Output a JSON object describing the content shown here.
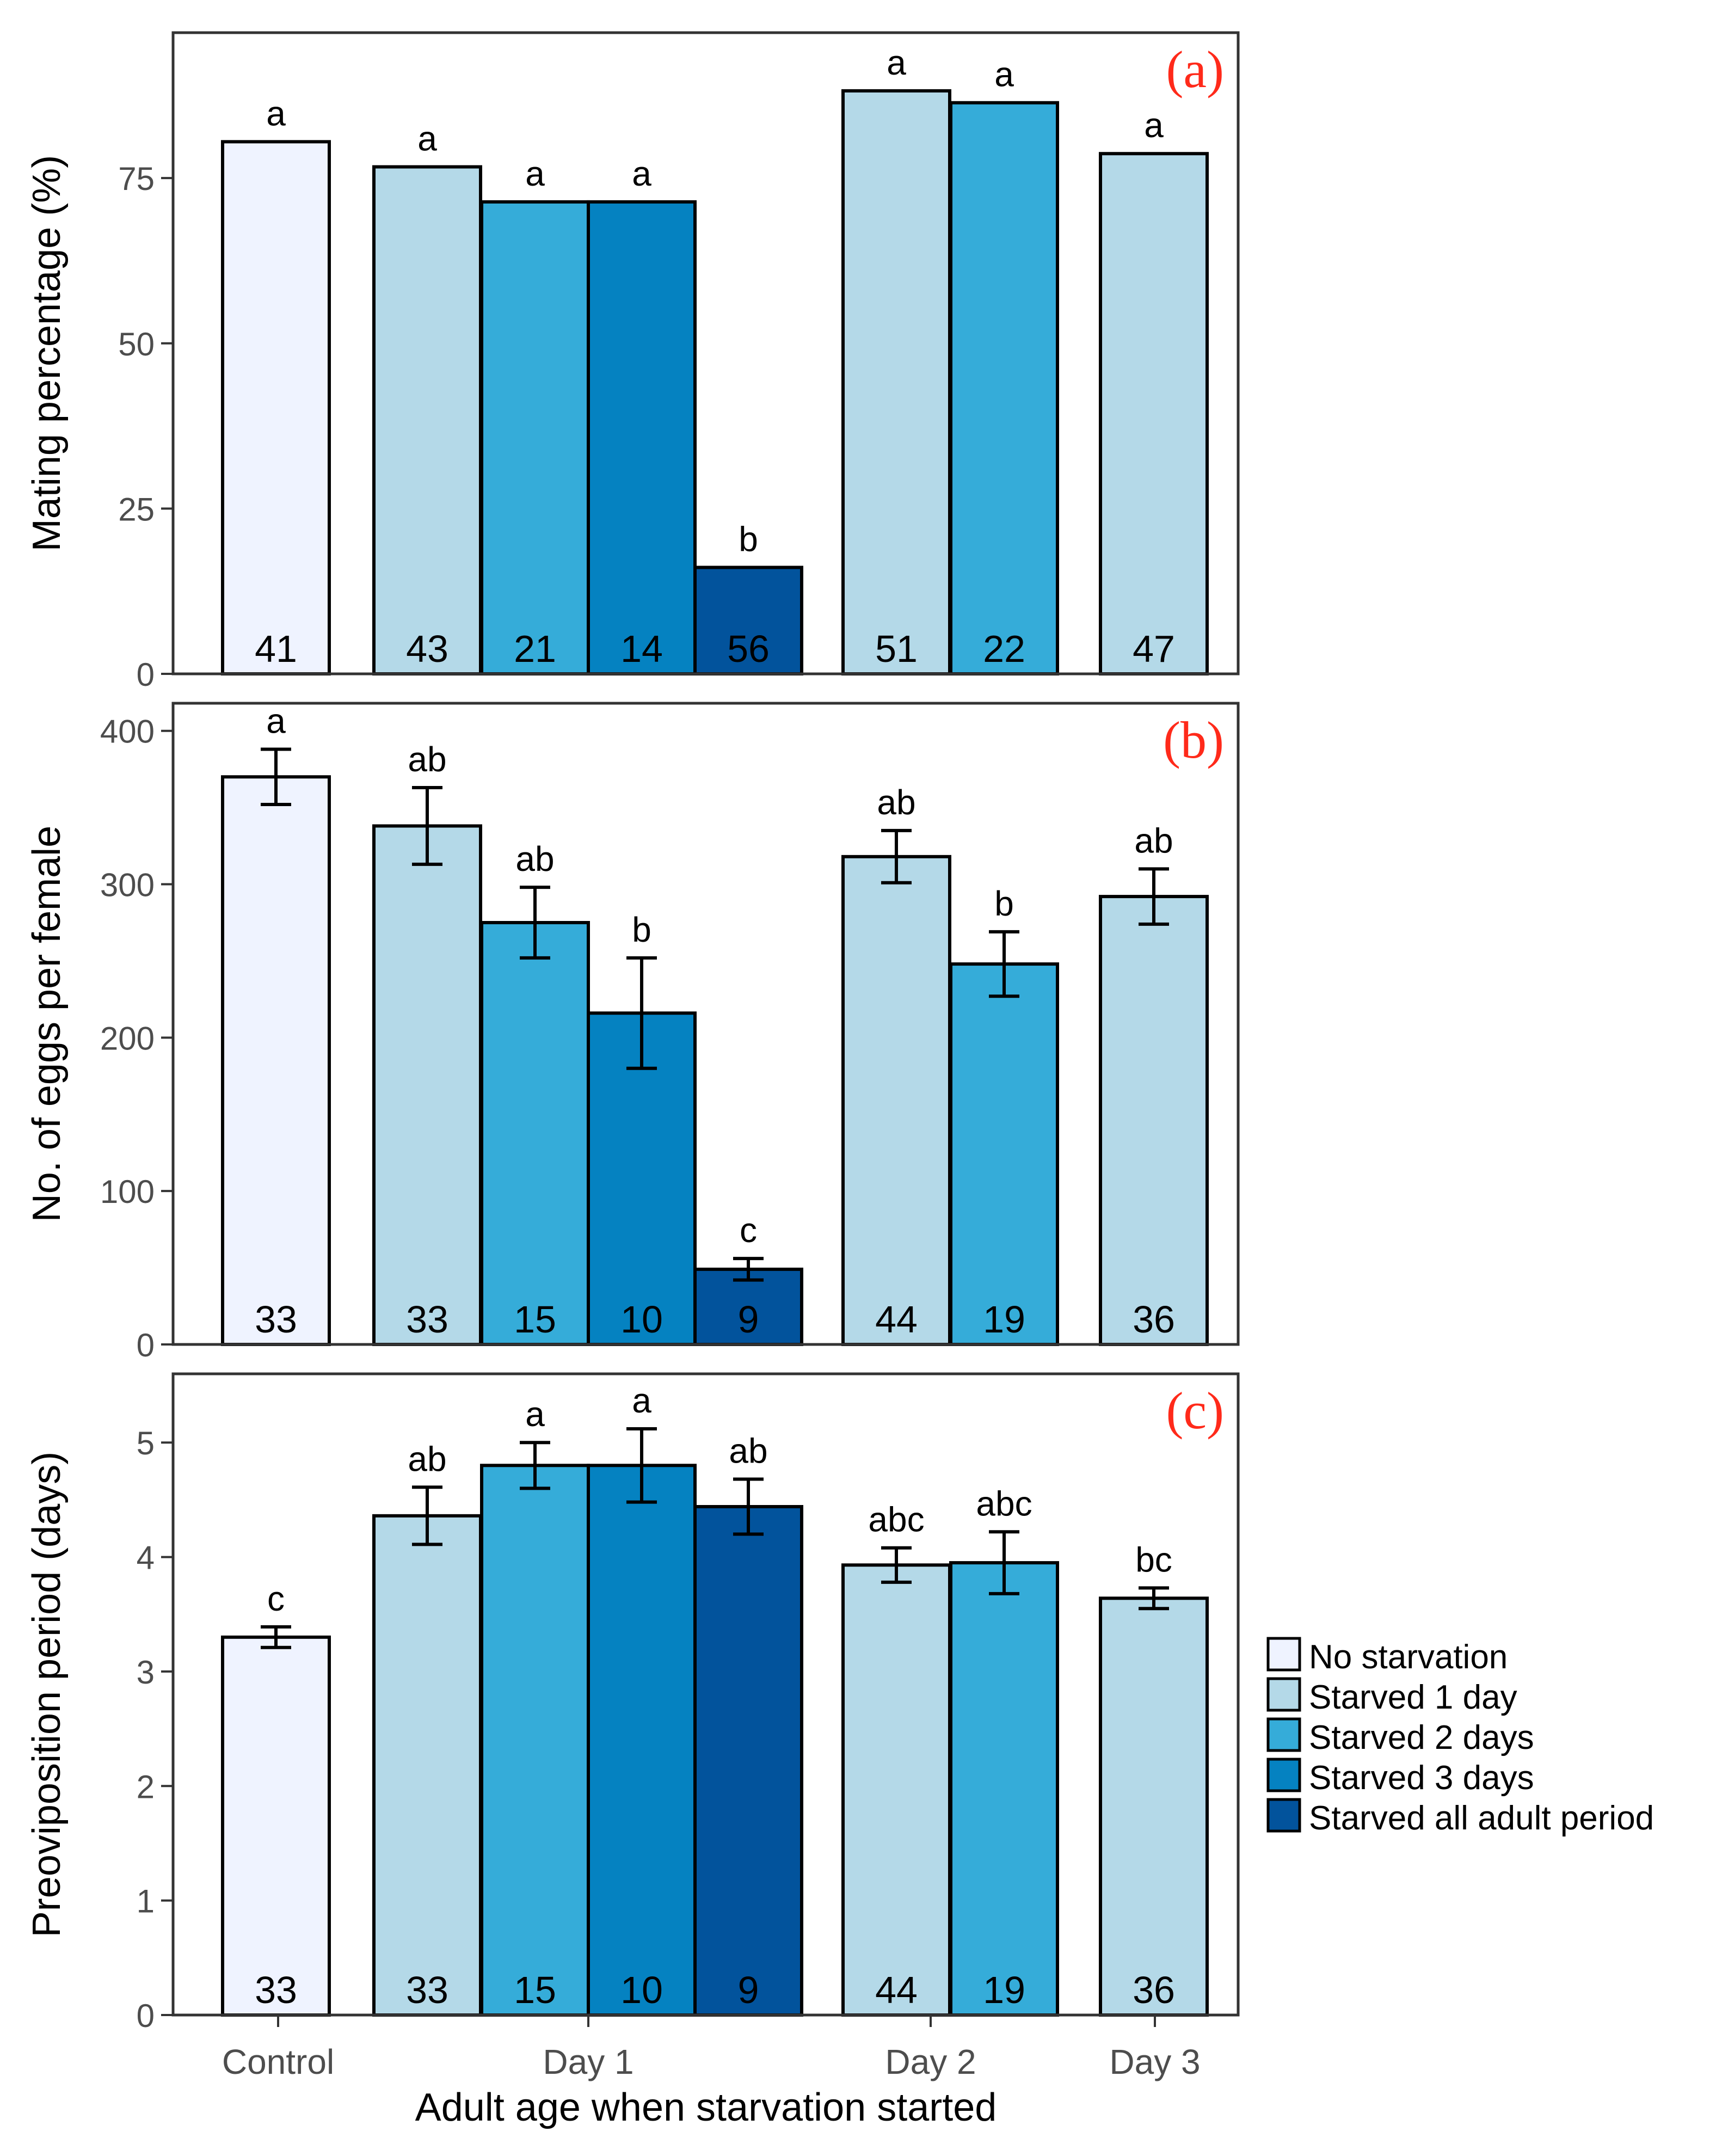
{
  "chart_data": [
    {
      "type": "bar",
      "panel_label": "(a)",
      "ylabel": "Mating percentage (%)",
      "ylim": [
        0,
        97
      ],
      "yticks": [
        0,
        25,
        50,
        75
      ],
      "error_bars": false,
      "bars": [
        {
          "group": "Control",
          "treatment": "No starvation",
          "value": 80.5,
          "letter": "a",
          "n": "41"
        },
        {
          "group": "Day 1",
          "treatment": "Starved 1 day",
          "value": 76.7,
          "letter": "a",
          "n": "43"
        },
        {
          "group": "Day 1",
          "treatment": "Starved 2 days",
          "value": 71.4,
          "letter": "a",
          "n": "21"
        },
        {
          "group": "Day 1",
          "treatment": "Starved 3 days",
          "value": 71.4,
          "letter": "a",
          "n": "14"
        },
        {
          "group": "Day 1",
          "treatment": "Starved all adult period",
          "value": 16.1,
          "letter": "b",
          "n": "56"
        },
        {
          "group": "Day 2",
          "treatment": "Starved 1 day",
          "value": 88.2,
          "letter": "a",
          "n": "51"
        },
        {
          "group": "Day 2",
          "treatment": "Starved 2 days",
          "value": 86.4,
          "letter": "a",
          "n": "22"
        },
        {
          "group": "Day 3",
          "treatment": "Starved 1 day",
          "value": 78.7,
          "letter": "a",
          "n": "47"
        }
      ]
    },
    {
      "type": "bar",
      "panel_label": "(b)",
      "ylabel": "No. of eggs per female",
      "ylim": [
        0,
        418
      ],
      "yticks": [
        0,
        100,
        200,
        300,
        400
      ],
      "error_bars": true,
      "bars": [
        {
          "group": "Control",
          "treatment": "No starvation",
          "value": 370,
          "err": 18,
          "letter": "a",
          "n": "33"
        },
        {
          "group": "Day 1",
          "treatment": "Starved 1 day",
          "value": 338,
          "err": 25,
          "letter": "ab",
          "n": "33"
        },
        {
          "group": "Day 1",
          "treatment": "Starved 2 days",
          "value": 275,
          "err": 23,
          "letter": "ab",
          "n": "15"
        },
        {
          "group": "Day 1",
          "treatment": "Starved 3 days",
          "value": 216,
          "err": 36,
          "letter": "b",
          "n": "10"
        },
        {
          "group": "Day 1",
          "treatment": "Starved all adult period",
          "value": 49,
          "err": 7,
          "letter": "c",
          "n": "9"
        },
        {
          "group": "Day 2",
          "treatment": "Starved 1 day",
          "value": 318,
          "err": 17,
          "letter": "ab",
          "n": "44"
        },
        {
          "group": "Day 2",
          "treatment": "Starved 2 days",
          "value": 248,
          "err": 21,
          "letter": "b",
          "n": "19"
        },
        {
          "group": "Day 3",
          "treatment": "Starved 1 day",
          "value": 292,
          "err": 18,
          "letter": "ab",
          "n": "36"
        }
      ]
    },
    {
      "type": "bar",
      "panel_label": "(c)",
      "ylabel": "Preoviposition period (days)",
      "ylim": [
        0,
        5.6
      ],
      "yticks": [
        0,
        1,
        2,
        3,
        4,
        5
      ],
      "error_bars": true,
      "bars": [
        {
          "group": "Control",
          "treatment": "No starvation",
          "value": 3.3,
          "err": 0.09,
          "letter": "c",
          "n": "33"
        },
        {
          "group": "Day 1",
          "treatment": "Starved 1 day",
          "value": 4.36,
          "err": 0.25,
          "letter": "ab",
          "n": "33"
        },
        {
          "group": "Day 1",
          "treatment": "Starved 2 days",
          "value": 4.8,
          "err": 0.2,
          "letter": "a",
          "n": "15"
        },
        {
          "group": "Day 1",
          "treatment": "Starved 3 days",
          "value": 4.8,
          "err": 0.32,
          "letter": "a",
          "n": "10"
        },
        {
          "group": "Day 1",
          "treatment": "Starved all adult period",
          "value": 4.44,
          "err": 0.24,
          "letter": "ab",
          "n": "9"
        },
        {
          "group": "Day 2",
          "treatment": "Starved 1 day",
          "value": 3.93,
          "err": 0.15,
          "letter": "abc",
          "n": "44"
        },
        {
          "group": "Day 2",
          "treatment": "Starved 2 days",
          "value": 3.95,
          "err": 0.27,
          "letter": "abc",
          "n": "19"
        },
        {
          "group": "Day 3",
          "treatment": "Starved 1 day",
          "value": 3.64,
          "err": 0.09,
          "letter": "bc",
          "n": "36"
        }
      ]
    }
  ],
  "x_axis": {
    "label": "Adult age when starvation started",
    "groups": [
      "Control",
      "Day 1",
      "Day 2",
      "Day 3"
    ]
  },
  "legend": {
    "placement": "right",
    "items": [
      {
        "label": "No starvation",
        "color": "#eff3ff"
      },
      {
        "label": "Starved 1 day",
        "color": "#b4d9e8"
      },
      {
        "label": "Starved 2 days",
        "color": "#35acd9"
      },
      {
        "label": "Starved 3 days",
        "color": "#0582c1"
      },
      {
        "label": "Starved all adult period",
        "color": "#02539c"
      }
    ]
  },
  "colors": {
    "No starvation": "#eff3ff",
    "Starved 1 day": "#b4d9e8",
    "Starved 2 days": "#35acd9",
    "Starved 3 days": "#0582c1",
    "Starved all adult period": "#02539c",
    "panel_label": "#ff2a1a",
    "axis": "#333333",
    "tick_text": "#4d4d4d",
    "text": "#000000"
  }
}
